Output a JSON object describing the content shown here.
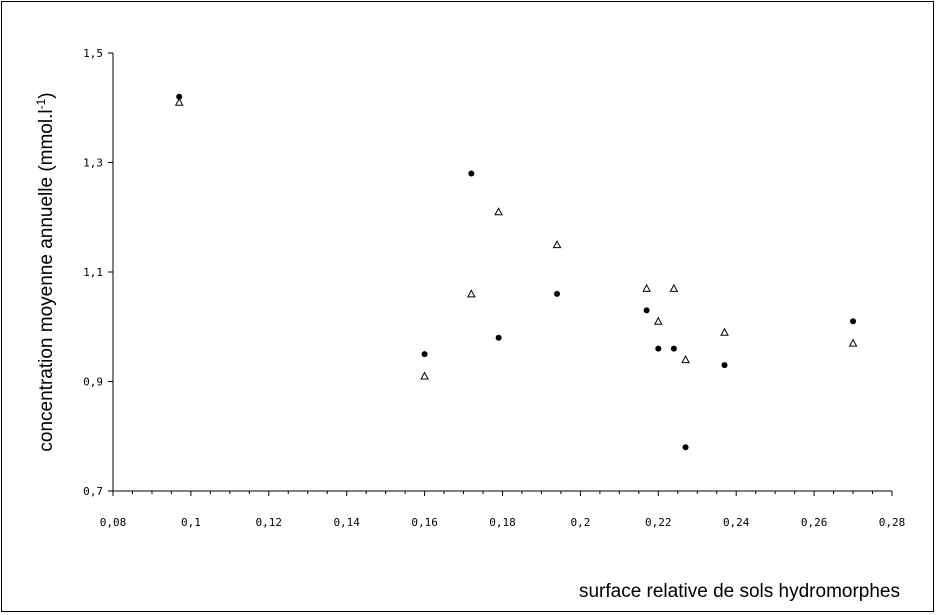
{
  "chart_data": {
    "type": "scatter",
    "xlabel": "surface relative de sols hydromorphes",
    "ylabel": "concentration moyenne annuelle (mmol.l",
    "ylabel_superscript": "-1",
    "ylabel_suffix": ")",
    "xlim": [
      0.08,
      0.28
    ],
    "ylim": [
      0.7,
      1.5
    ],
    "x_ticks": [
      "0,08",
      "0,1",
      "0,12",
      "0,14",
      "0,16",
      "0,18",
      "0,2",
      "0,22",
      "0,24",
      "0,26",
      "0,28"
    ],
    "x_tick_values": [
      0.08,
      0.1,
      0.12,
      0.14,
      0.16,
      0.18,
      0.2,
      0.22,
      0.24,
      0.26,
      0.28
    ],
    "y_ticks": [
      "0,7",
      "0,9",
      "1,1",
      "1,3",
      "1,5"
    ],
    "y_tick_values": [
      0.7,
      0.9,
      1.1,
      1.3,
      1.5
    ],
    "grid": false,
    "series": [
      {
        "marker": "filled-circle",
        "color": "#000000",
        "points": [
          [
            0.097,
            1.42
          ],
          [
            0.16,
            0.95
          ],
          [
            0.172,
            1.28
          ],
          [
            0.179,
            0.98
          ],
          [
            0.194,
            1.06
          ],
          [
            0.217,
            1.03
          ],
          [
            0.22,
            0.96
          ],
          [
            0.224,
            0.96
          ],
          [
            0.227,
            0.78
          ],
          [
            0.237,
            0.93
          ],
          [
            0.27,
            1.01
          ]
        ]
      },
      {
        "marker": "open-triangle",
        "color": "#000000",
        "points": [
          [
            0.097,
            1.41
          ],
          [
            0.16,
            0.91
          ],
          [
            0.172,
            1.06
          ],
          [
            0.179,
            1.21
          ],
          [
            0.194,
            1.15
          ],
          [
            0.217,
            1.07
          ],
          [
            0.22,
            1.01
          ],
          [
            0.224,
            1.07
          ],
          [
            0.227,
            0.94
          ],
          [
            0.237,
            0.99
          ],
          [
            0.27,
            0.97
          ]
        ]
      }
    ]
  }
}
